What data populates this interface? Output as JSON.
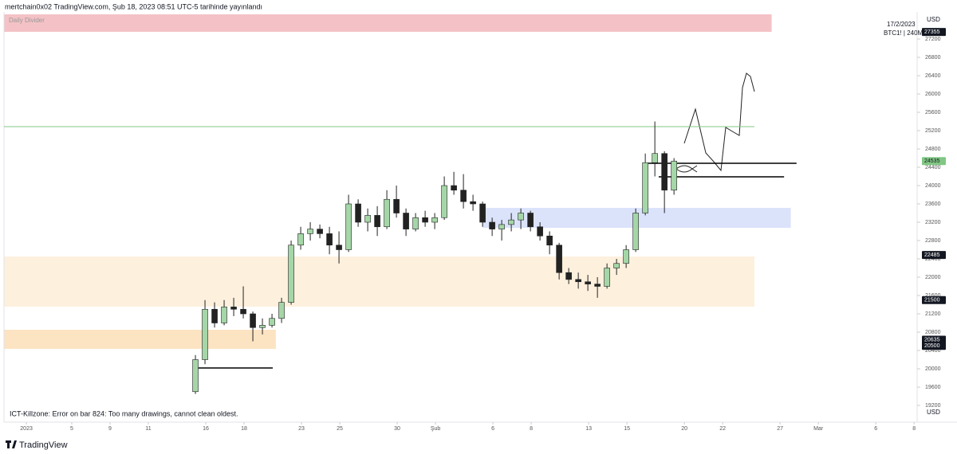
{
  "header": "mertchain0x02 TradingView.com, Şub 18, 2023 08:51 UTC-5 tarihinde yayınlandı",
  "chart_data": {
    "type": "candlestick",
    "symbol": "BTC1! | 240M",
    "date": "17/2/2023",
    "currency": "USD",
    "x": [
      10,
      10.5,
      11,
      11.5,
      12,
      12.5,
      13,
      13.5,
      14,
      14.5,
      15,
      15.5,
      16,
      16.5,
      17,
      17.5,
      18,
      18.5,
      19,
      19.5,
      20,
      20.5,
      21,
      21.5,
      22,
      22.5,
      23,
      23.5,
      24,
      24.5,
      25,
      25.5,
      26,
      26.5,
      27,
      27.5,
      28,
      28.5,
      29,
      29.5,
      30,
      30.5,
      31,
      31.5,
      32,
      32.5,
      33,
      33.5,
      34,
      34.5,
      35
    ],
    "open": [
      19500,
      20200,
      21300,
      21000,
      21350,
      21300,
      21200,
      20900,
      20950,
      21100,
      21450,
      22700,
      22950,
      23050,
      22950,
      22700,
      22600,
      23600,
      23200,
      23350,
      23100,
      23700,
      23400,
      23050,
      23300,
      23200,
      23300,
      24000,
      23900,
      23650,
      23600,
      23200,
      23050,
      23150,
      23250,
      23400,
      23100,
      22900,
      22700,
      22100,
      21950,
      21900,
      21850,
      21800,
      22200,
      22300,
      22600,
      23400,
      24500,
      24700,
      23900
    ],
    "high": [
      20300,
      21500,
      21450,
      21500,
      21550,
      21800,
      21250,
      21100,
      21200,
      21550,
      22800,
      23100,
      23200,
      23150,
      23100,
      23000,
      23800,
      23700,
      23500,
      23550,
      23900,
      24000,
      23500,
      23400,
      23450,
      23400,
      24200,
      24300,
      24250,
      23800,
      23650,
      23300,
      23250,
      23400,
      23500,
      23450,
      23200,
      23000,
      22750,
      22200,
      22100,
      22050,
      22000,
      22300,
      22400,
      22700,
      23500,
      24700,
      25400,
      24750,
      24600
    ],
    "low": [
      19450,
      20100,
      20900,
      20950,
      21150,
      21100,
      20600,
      20750,
      20900,
      21000,
      21400,
      22600,
      22800,
      22850,
      22500,
      22300,
      22550,
      23100,
      23000,
      22900,
      23050,
      23300,
      22900,
      23000,
      23100,
      23050,
      23250,
      23800,
      23500,
      23450,
      23100,
      22900,
      22800,
      23000,
      23050,
      23000,
      22800,
      22500,
      21950,
      21850,
      21750,
      21700,
      21550,
      21750,
      22050,
      22200,
      22550,
      23350,
      24200,
      23400,
      23800
    ],
    "close": [
      20200,
      21300,
      21000,
      21350,
      21300,
      21200,
      20900,
      20950,
      21100,
      21450,
      22700,
      22950,
      23050,
      22950,
      22700,
      22600,
      23600,
      23200,
      23350,
      23100,
      23700,
      23400,
      23050,
      23300,
      23200,
      23300,
      24000,
      23900,
      23650,
      23600,
      23200,
      23050,
      23150,
      23250,
      23400,
      23100,
      22900,
      22700,
      22100,
      21950,
      21900,
      21850,
      21800,
      22200,
      22300,
      22600,
      23400,
      24500,
      24700,
      23900,
      24535
    ],
    "up_color": "#a5d6a7",
    "down_color": "#222222",
    "xlim": [
      0,
      47.7
    ],
    "ylim": [
      19096,
      27791
    ],
    "xticks": [
      {
        "value": 1.17,
        "label": "2023"
      },
      {
        "value": 3.54,
        "label": "5"
      },
      {
        "value": 5.54,
        "label": "9"
      },
      {
        "value": 7.54,
        "label": "11"
      },
      {
        "value": 10.54,
        "label": "16"
      },
      {
        "value": 12.54,
        "label": "18"
      },
      {
        "value": 15.54,
        "label": "23"
      },
      {
        "value": 17.54,
        "label": "25"
      },
      {
        "value": 20.54,
        "label": "30"
      },
      {
        "value": 22.54,
        "label": "Şub"
      },
      {
        "value": 25.54,
        "label": "6"
      },
      {
        "value": 27.54,
        "label": "8"
      },
      {
        "value": 30.54,
        "label": "13"
      },
      {
        "value": 32.54,
        "label": "15"
      },
      {
        "value": 35.54,
        "label": "20"
      },
      {
        "value": 37.54,
        "label": "22"
      },
      {
        "value": 40.54,
        "label": "27"
      },
      {
        "value": 42.54,
        "label": "Mar"
      },
      {
        "value": 45.54,
        "label": "6"
      },
      {
        "value": 47.54,
        "label": "8"
      }
    ],
    "yticks": [
      19200,
      19600,
      20000,
      20400,
      20800,
      21200,
      21600,
      22000,
      22400,
      22800,
      23200,
      23600,
      24000,
      24400,
      24800,
      25200,
      25600,
      26000,
      26400,
      26800,
      27200
    ],
    "zones": [
      {
        "name": "Daily Divider",
        "range": [
          27357,
          27739
        ],
        "x": [
          0,
          40.1
        ],
        "color": "#f4c2c6"
      },
      {
        "range": [
          23078,
          23513
        ],
        "x": [
          25,
          41.1
        ],
        "color": "#dbe3fb"
      },
      {
        "range": [
          21357,
          22452
        ],
        "x": [
          0,
          39.2
        ],
        "color": "#fdf0dd"
      },
      {
        "range": [
          20435,
          20852
        ],
        "x": [
          0,
          14.2
        ],
        "color": "#fce3c2"
      }
    ],
    "hlines": [
      {
        "value": 25287,
        "x": [
          0,
          39.2
        ],
        "color": "#81c784"
      },
      {
        "value": 24487,
        "x": [
          33.5,
          41.4
        ],
        "color": "#000000"
      },
      {
        "value": 24191,
        "x": [
          34.2,
          40.75
        ],
        "color": "#000000"
      },
      {
        "value": 20017,
        "x": [
          10,
          14.04
        ],
        "color": "#000000"
      }
    ],
    "price_labels": [
      {
        "value": 27355,
        "color": "#131722"
      },
      {
        "value": 24535,
        "color": "#81c784"
      },
      {
        "value": 22485,
        "color": "#131722"
      },
      {
        "value": 21500,
        "color": "#131722"
      },
      {
        "value": 20635,
        "color": "#131722"
      },
      {
        "value": 20500,
        "color": "#131722"
      }
    ],
    "annotation": "ICT-Killzone: Error on bar 824: Too many drawings, cannot clean oldest."
  },
  "footer": "TradingView"
}
